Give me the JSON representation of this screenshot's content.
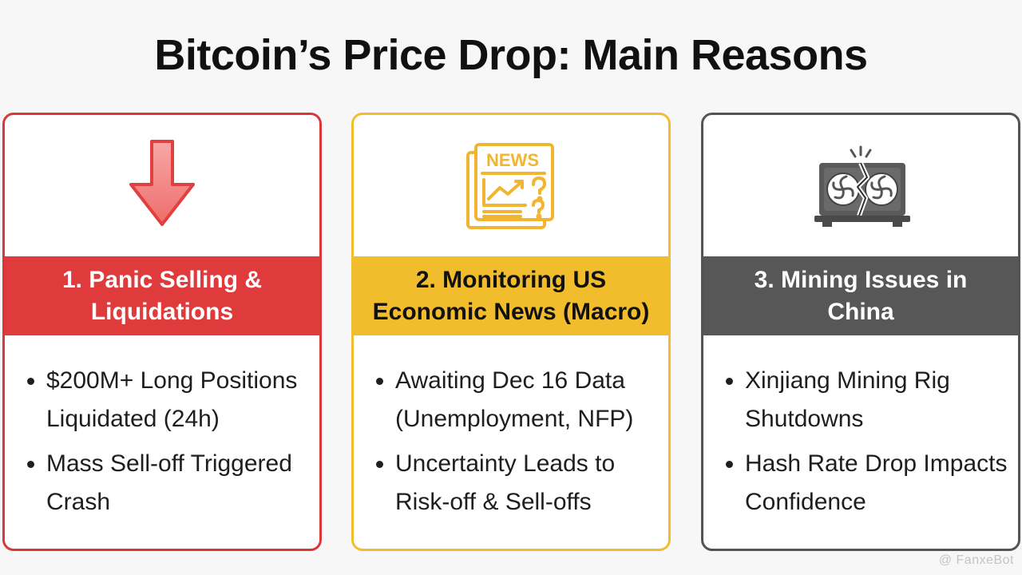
{
  "title": "Bitcoin’s Price Drop: Main Reasons",
  "colors": {
    "red": "#df3b3d",
    "yellow": "#f2bd2c",
    "gray": "#575757"
  },
  "cards": [
    {
      "icon": "down-arrow-icon",
      "heading_line1": "1. Panic Selling &",
      "heading_line2": "Liquidations",
      "bullets": [
        "$200M+ Long Positions Liquidated (24h)",
        "Mass Sell-off Triggered Crash"
      ]
    },
    {
      "icon": "newspaper-icon",
      "icon_text": "NEWS",
      "heading_line1": "2. Monitoring US",
      "heading_line2": "Economic News (Macro)",
      "bullets": [
        "Awaiting Dec 16 Data (Unemployment, NFP)",
        "Uncertainty Leads to Risk-off & Sell-offs"
      ]
    },
    {
      "icon": "broken-mining-rig-icon",
      "heading_line1": "3. Mining Issues in",
      "heading_line2": "China",
      "bullets": [
        "Xinjiang Mining Rig Shutdowns",
        "Hash Rate Drop Impacts Confidence"
      ]
    }
  ],
  "watermark": "@ FanxeBot"
}
